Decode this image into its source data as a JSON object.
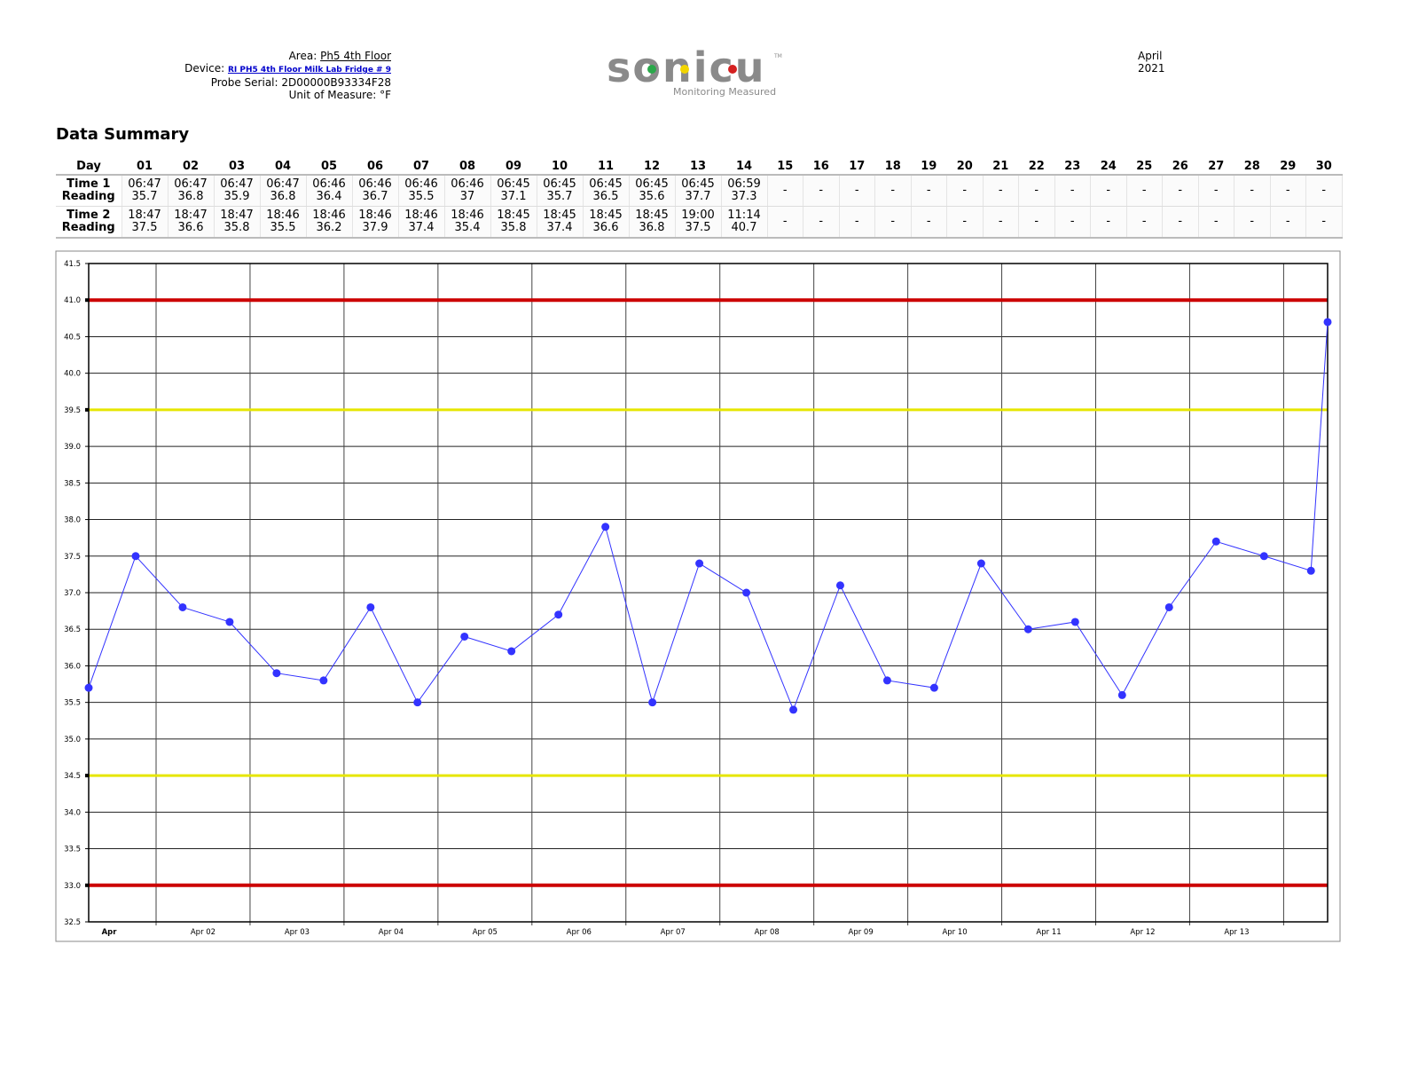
{
  "header": {
    "area_label": "Area:",
    "area": "Ph5 4th Floor",
    "device_label": "Device:",
    "device": "RI PH5 4th Floor Milk Lab Fridge # 9",
    "probe_serial": "Probe Serial: 2D00000B93334F28",
    "unit": "Unit of Measure: °F",
    "month": "April",
    "year": "2021"
  },
  "logo": {
    "name": "sonicu",
    "tm": "TM",
    "tagline": "Monitoring Measured"
  },
  "section_title": "Data Summary",
  "table": {
    "header": [
      "Day",
      "01",
      "02",
      "03",
      "04",
      "05",
      "06",
      "07",
      "08",
      "09",
      "10",
      "11",
      "12",
      "13",
      "14",
      "15",
      "16",
      "17",
      "18",
      "19",
      "20",
      "21",
      "22",
      "23",
      "24",
      "25",
      "26",
      "27",
      "28",
      "29",
      "30"
    ],
    "rows": [
      {
        "label": [
          "Time 1",
          "Reading"
        ],
        "cells": [
          [
            "06:47",
            "35.7"
          ],
          [
            "06:47",
            "36.8"
          ],
          [
            "06:47",
            "35.9"
          ],
          [
            "06:47",
            "36.8"
          ],
          [
            "06:46",
            "36.4"
          ],
          [
            "06:46",
            "36.7"
          ],
          [
            "06:46",
            "35.5"
          ],
          [
            "06:46",
            "37"
          ],
          [
            "06:45",
            "37.1"
          ],
          [
            "06:45",
            "35.7"
          ],
          [
            "06:45",
            "36.5"
          ],
          [
            "06:45",
            "35.6"
          ],
          [
            "06:45",
            "37.7"
          ],
          [
            "06:59",
            "37.3"
          ],
          "-",
          "-",
          "-",
          "-",
          "-",
          "-",
          "-",
          "-",
          "-",
          "-",
          "-",
          "-",
          "-",
          "-",
          "-",
          "-"
        ]
      },
      {
        "label": [
          "Time 2",
          "Reading"
        ],
        "cells": [
          [
            "18:47",
            "37.5"
          ],
          [
            "18:47",
            "36.6"
          ],
          [
            "18:47",
            "35.8"
          ],
          [
            "18:46",
            "35.5"
          ],
          [
            "18:46",
            "36.2"
          ],
          [
            "18:46",
            "37.9"
          ],
          [
            "18:46",
            "37.4"
          ],
          [
            "18:46",
            "35.4"
          ],
          [
            "18:45",
            "35.8"
          ],
          [
            "18:45",
            "37.4"
          ],
          [
            "18:45",
            "36.6"
          ],
          [
            "18:45",
            "36.8"
          ],
          [
            "19:00",
            "37.5"
          ],
          [
            "11:14",
            "40.7"
          ],
          "-",
          "-",
          "-",
          "-",
          "-",
          "-",
          "-",
          "-",
          "-",
          "-",
          "-",
          "-",
          "-",
          "-",
          "-",
          "-"
        ]
      }
    ]
  },
  "chart_data": {
    "type": "line",
    "x": [
      "Apr 01 06:47",
      "Apr 01 18:47",
      "Apr 02 06:47",
      "Apr 02 18:47",
      "Apr 03 06:47",
      "Apr 03 18:47",
      "Apr 04 06:47",
      "Apr 04 18:46",
      "Apr 05 06:46",
      "Apr 05 18:46",
      "Apr 06 06:46",
      "Apr 06 18:46",
      "Apr 07 06:46",
      "Apr 07 18:46",
      "Apr 08 06:46",
      "Apr 08 18:46",
      "Apr 09 06:45",
      "Apr 09 18:45",
      "Apr 10 06:45",
      "Apr 10 18:45",
      "Apr 11 06:45",
      "Apr 11 18:45",
      "Apr 12 06:45",
      "Apr 12 18:45",
      "Apr 13 06:45",
      "Apr 13 19:00",
      "Apr 14 06:59",
      "Apr 14 11:14"
    ],
    "values": [
      35.7,
      37.5,
      36.8,
      36.6,
      35.9,
      35.8,
      36.8,
      35.5,
      36.4,
      36.2,
      36.7,
      37.9,
      35.5,
      37.4,
      37,
      35.4,
      37.1,
      35.8,
      35.7,
      37.4,
      36.5,
      36.6,
      35.6,
      36.8,
      37.7,
      37.5,
      37.3,
      40.7
    ],
    "color": "#3333ff",
    "xlim": [
      "Apr 01 06:47",
      "Apr 14 11:14"
    ],
    "xticks": [
      {
        "value": "Apr 01 12:00",
        "label": "Apr"
      },
      {
        "value": "Apr 02 12:00",
        "label": "Apr 02"
      },
      {
        "value": "Apr 03 12:00",
        "label": "Apr 03"
      },
      {
        "value": "Apr 04 12:00",
        "label": "Apr 04"
      },
      {
        "value": "Apr 05 12:00",
        "label": "Apr 05"
      },
      {
        "value": "Apr 06 12:00",
        "label": "Apr 06"
      },
      {
        "value": "Apr 07 12:00",
        "label": "Apr 07"
      },
      {
        "value": "Apr 08 12:00",
        "label": "Apr 08"
      },
      {
        "value": "Apr 09 12:00",
        "label": "Apr 09"
      },
      {
        "value": "Apr 10 12:00",
        "label": "Apr 10"
      },
      {
        "value": "Apr 11 12:00",
        "label": "Apr 11"
      },
      {
        "value": "Apr 12 12:00",
        "label": "Apr 12"
      },
      {
        "value": "Apr 13 12:00",
        "label": "Apr 13"
      }
    ],
    "xminor_ticks": [
      "Apr 02 00:00",
      "Apr 03 00:00",
      "Apr 04 00:00",
      "Apr 05 00:00",
      "Apr 06 00:00",
      "Apr 07 00:00",
      "Apr 08 00:00",
      "Apr 09 00:00",
      "Apr 10 00:00",
      "Apr 11 00:00",
      "Apr 12 00:00",
      "Apr 13 00:00",
      "Apr 14 00:00"
    ],
    "ylim": [
      32.5,
      41.5
    ],
    "yticks": [
      32.5,
      {
        "value": 33,
        "label": "33.0"
      },
      33.5,
      {
        "value": 34,
        "label": "34.0"
      },
      34.5,
      {
        "value": 35,
        "label": "35.0"
      },
      35.5,
      {
        "value": 36,
        "label": "36.0"
      },
      36.5,
      {
        "value": 37,
        "label": "37.0"
      },
      37.5,
      {
        "value": 38,
        "label": "38.0"
      },
      38.5,
      {
        "value": 39,
        "label": "39.0"
      },
      39.5,
      {
        "value": 40,
        "label": "40.0"
      },
      40.5,
      {
        "value": 41,
        "label": "41.0"
      },
      41.5
    ],
    "limits": [
      {
        "value": 41,
        "color": "#cc0000"
      },
      {
        "value": 33,
        "color": "#cc0000"
      },
      {
        "value": 39.5,
        "color": "#e6e600"
      },
      {
        "value": 34.5,
        "color": "#e6e600"
      }
    ],
    "grid": true
  }
}
